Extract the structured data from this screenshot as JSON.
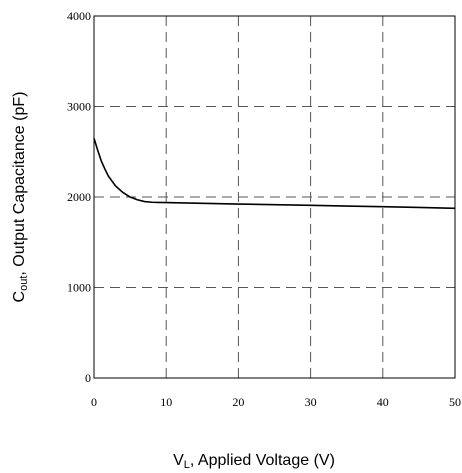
{
  "chart_data": {
    "type": "line",
    "xlabel_main": "V",
    "xlabel_sub": "L",
    "xlabel_rest": ", Applied Voltage (V)",
    "ylabel_main": "C",
    "ylabel_sub": "out",
    "ylabel_rest": ",  Output Capacitance (pF)",
    "xlim": [
      0,
      50
    ],
    "ylim": [
      0,
      4000
    ],
    "x_ticks": [
      0,
      10,
      20,
      30,
      40,
      50
    ],
    "y_ticks": [
      0,
      1000,
      2000,
      3000,
      4000
    ],
    "grid": true,
    "series": [
      {
        "x": [
          0,
          0.5,
          1,
          1.5,
          2,
          3,
          4,
          5,
          6,
          7,
          8,
          9,
          10,
          15,
          20,
          25,
          30,
          35,
          40,
          45,
          50
        ],
        "y": [
          2650,
          2520,
          2400,
          2310,
          2230,
          2120,
          2050,
          2000,
          1970,
          1950,
          1942,
          1940,
          1938,
          1930,
          1922,
          1915,
          1908,
          1900,
          1893,
          1885,
          1875
        ]
      }
    ]
  }
}
